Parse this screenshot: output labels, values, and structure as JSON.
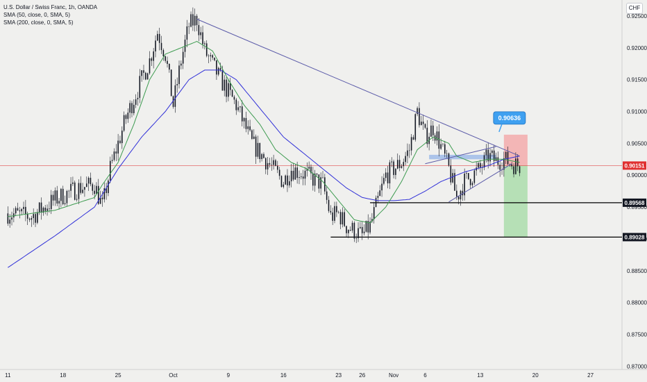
{
  "legend": {
    "symbol": "U.S. Dollar / Swiss Franc, 1h, OANDA",
    "sma50": "SMA (50, close, 0, SMA, 5)",
    "sma200": "SMA (200, close, 0, SMA, 5)"
  },
  "currency_button": "CHF",
  "colors": {
    "background": "#f0f0ee",
    "candle": "#131722",
    "sma50": "#3d9b50",
    "sma200": "#3030d8",
    "trendline": "#5a5aa8",
    "current_price": "#e03030",
    "callout": "#3fa0f0",
    "stop_zone": "#f4a8a8",
    "target_zone": "#a8dca8",
    "level_line": "#000000"
  },
  "chart_data": {
    "type": "candlestick",
    "title": "U.S. Dollar / Swiss Franc, 1h, OANDA",
    "ylim": [
      0.8695,
      0.9275
    ],
    "y_ticks": [
      "0.92500",
      "0.92000",
      "0.91500",
      "0.91000",
      "0.90500",
      "0.90000",
      "0.89500",
      "0.89000",
      "0.88500",
      "0.88000",
      "0.87500",
      "0.87000"
    ],
    "y_tick_values": [
      0.925,
      0.92,
      0.915,
      0.91,
      0.905,
      0.9,
      0.895,
      0.89,
      0.885,
      0.88,
      0.875,
      0.87
    ],
    "x_ticks": [
      "11",
      "18",
      "25",
      "Oct",
      "9",
      "16",
      "23",
      "26",
      "Nov",
      "6",
      "13",
      "20",
      "27"
    ],
    "x_tick_index": [
      0,
      7,
      14,
      21,
      28,
      35,
      42,
      45,
      49,
      53,
      60,
      67,
      74
    ],
    "x_range": [
      -1,
      78
    ],
    "close_key": [
      [
        0,
        0.894
      ],
      [
        3,
        0.8935
      ],
      [
        6,
        0.8962
      ],
      [
        9,
        0.898
      ],
      [
        11,
        0.8985
      ],
      [
        12,
        0.895
      ],
      [
        13,
        0.901
      ],
      [
        15,
        0.909
      ],
      [
        18,
        0.918
      ],
      [
        19,
        0.9225
      ],
      [
        20,
        0.919
      ],
      [
        21,
        0.911
      ],
      [
        22,
        0.918
      ],
      [
        23,
        0.9235
      ],
      [
        24,
        0.9245
      ],
      [
        25,
        0.9195
      ],
      [
        27,
        0.915
      ],
      [
        29,
        0.911
      ],
      [
        31,
        0.905
      ],
      [
        33,
        0.902
      ],
      [
        35,
        0.899
      ],
      [
        36,
        0.901
      ],
      [
        38,
        0.9
      ],
      [
        40,
        0.8985
      ],
      [
        41,
        0.8935
      ],
      [
        42,
        0.894
      ],
      [
        43,
        0.892
      ],
      [
        45,
        0.8905
      ],
      [
        46,
        0.892
      ],
      [
        47,
        0.896
      ],
      [
        48,
        0.9
      ],
      [
        50,
        0.902
      ],
      [
        51,
        0.904
      ],
      [
        52,
        0.91
      ],
      [
        53,
        0.906
      ],
      [
        54,
        0.9075
      ],
      [
        55,
        0.9045
      ],
      [
        56,
        0.901
      ],
      [
        57,
        0.8965
      ],
      [
        58,
        0.899
      ],
      [
        59,
        0.9
      ],
      [
        60,
        0.901
      ],
      [
        61,
        0.903
      ],
      [
        62,
        0.9022
      ],
      [
        63,
        0.9025
      ],
      [
        64,
        0.9018
      ],
      [
        65,
        0.9015
      ]
    ],
    "sma50_key": [
      [
        0,
        0.8935
      ],
      [
        6,
        0.8945
      ],
      [
        11,
        0.8965
      ],
      [
        12,
        0.8985
      ],
      [
        14,
        0.902
      ],
      [
        16,
        0.908
      ],
      [
        18,
        0.915
      ],
      [
        20,
        0.919
      ],
      [
        22,
        0.92
      ],
      [
        24,
        0.921
      ],
      [
        26,
        0.9195
      ],
      [
        28,
        0.915
      ],
      [
        30,
        0.911
      ],
      [
        32,
        0.908
      ],
      [
        34,
        0.904
      ],
      [
        36,
        0.902
      ],
      [
        38,
        0.901
      ],
      [
        40,
        0.899
      ],
      [
        42,
        0.896
      ],
      [
        44,
        0.893
      ],
      [
        46,
        0.8925
      ],
      [
        48,
        0.895
      ],
      [
        50,
        0.899
      ],
      [
        52,
        0.904
      ],
      [
        54,
        0.906
      ],
      [
        56,
        0.905
      ],
      [
        57,
        0.903
      ],
      [
        59,
        0.902
      ],
      [
        61,
        0.9025
      ],
      [
        63,
        0.9025
      ],
      [
        65,
        0.902
      ]
    ],
    "sma200_key": [
      [
        0,
        0.8855
      ],
      [
        6,
        0.8905
      ],
      [
        11,
        0.895
      ],
      [
        14,
        0.901
      ],
      [
        17,
        0.906
      ],
      [
        20,
        0.91
      ],
      [
        23,
        0.915
      ],
      [
        25,
        0.9165
      ],
      [
        27,
        0.9165
      ],
      [
        29,
        0.915
      ],
      [
        31,
        0.912
      ],
      [
        33,
        0.909
      ],
      [
        35,
        0.906
      ],
      [
        37,
        0.904
      ],
      [
        39,
        0.902
      ],
      [
        41,
        0.9
      ],
      [
        43,
        0.898
      ],
      [
        45,
        0.8965
      ],
      [
        47,
        0.896
      ],
      [
        49,
        0.896
      ],
      [
        51,
        0.8962
      ],
      [
        53,
        0.8975
      ],
      [
        55,
        0.899
      ],
      [
        58,
        0.9005
      ],
      [
        61,
        0.9015
      ],
      [
        63,
        0.9025
      ],
      [
        65,
        0.903
      ]
    ],
    "descending_trendline": [
      [
        24,
        0.9245
      ],
      [
        65,
        0.903
      ]
    ],
    "wedge_upper": [
      [
        53,
        0.9018
      ],
      [
        62,
        0.9045
      ]
    ],
    "wedge_lower": [
      [
        56,
        0.8958
      ],
      [
        64,
        0.9018
      ]
    ],
    "level_lines": [
      {
        "label": "0.89568",
        "value": 0.89568,
        "from": 46
      },
      {
        "label": "0.89028",
        "value": 0.89028,
        "from": 41
      }
    ],
    "current_price": {
      "label": "0.90151",
      "value": 0.90151
    },
    "callout_price": "0.90636",
    "stop_zone": {
      "x0": 63,
      "x1": 66,
      "y_top": 0.90636,
      "y_bottom": 0.90151
    },
    "target_zone": {
      "x0": 63,
      "x1": 66,
      "y_top": 0.90151,
      "y_bottom": 0.89028
    },
    "blue_box": {
      "x0": 53.5,
      "x1": 62,
      "y_top": 0.9032,
      "y_bottom": 0.9025
    }
  }
}
